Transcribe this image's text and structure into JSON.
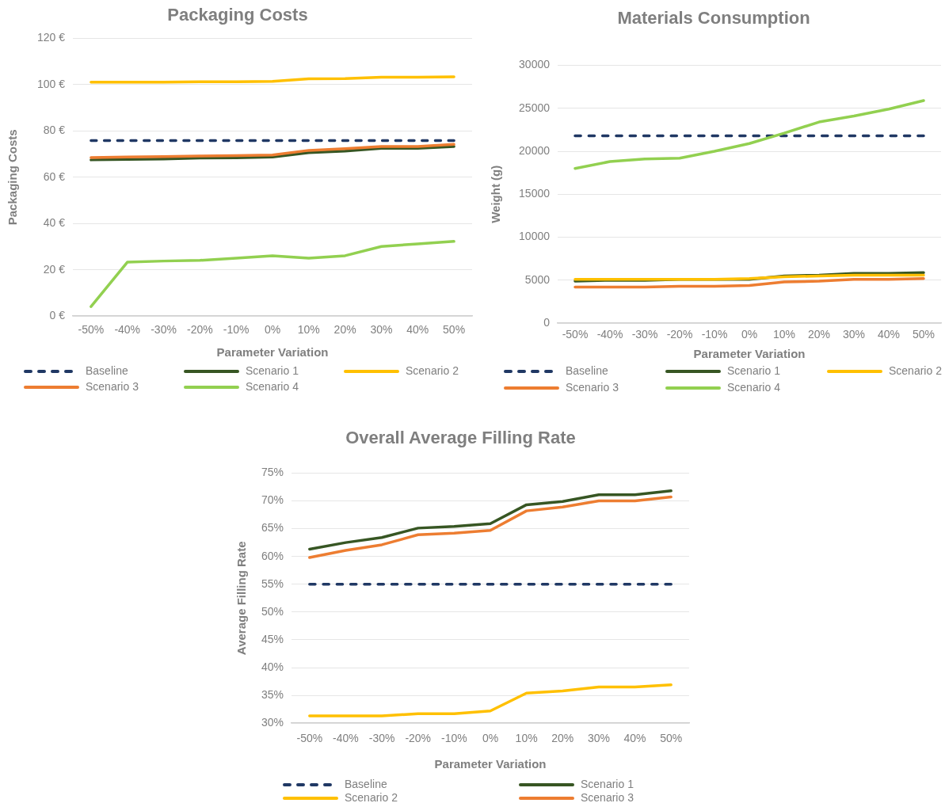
{
  "chart_data": [
    {
      "type": "line",
      "title": "Packaging Costs",
      "xlabel": "Parameter Variation",
      "ylabel": "Packaging Costs",
      "categories": [
        "-50%",
        "-40%",
        "-30%",
        "-20%",
        "-10%",
        "0%",
        "10%",
        "20%",
        "30%",
        "40%",
        "50%"
      ],
      "series": [
        {
          "name": "Baseline",
          "color": "#203864",
          "line_style": "dashed",
          "values": [
            75.8,
            75.8,
            75.8,
            75.8,
            75.8,
            75.8,
            75.8,
            75.8,
            75.8,
            75.8,
            75.8
          ]
        },
        {
          "name": "Scenario 1",
          "color": "#375623",
          "values": [
            67.5,
            67.7,
            67.9,
            68.3,
            68.4,
            68.7,
            70.6,
            71.3,
            72.5,
            72.5,
            73.3
          ]
        },
        {
          "name": "Scenario 2",
          "color": "#ffc000",
          "values": [
            101.1,
            101.1,
            101.1,
            101.2,
            101.2,
            101.4,
            102.5,
            102.6,
            103.2,
            103.2,
            103.4
          ]
        },
        {
          "name": "Scenario 3",
          "color": "#ed7d31",
          "values": [
            68.5,
            68.7,
            68.9,
            69.2,
            69.3,
            69.6,
            71.6,
            72.3,
            73.3,
            73.3,
            74.2
          ]
        },
        {
          "name": "Scenario 4",
          "color": "#92d050",
          "values": [
            4.1,
            23.3,
            23.8,
            24.1,
            25.0,
            26.1,
            25.0,
            26.1,
            30.1,
            31.2,
            32.3
          ]
        }
      ],
      "ylim": [
        0,
        120
      ],
      "yticks": [
        {
          "value": 0,
          "label": "0 €"
        },
        {
          "value": 20,
          "label": "20 €"
        },
        {
          "value": 40,
          "label": "40 €"
        },
        {
          "value": 60,
          "label": "60 €"
        },
        {
          "value": 80,
          "label": "80 €"
        },
        {
          "value": 100,
          "label": "100 €"
        },
        {
          "value": 120,
          "label": "120 €"
        }
      ],
      "grid": "y",
      "legend": "bottom"
    },
    {
      "type": "line",
      "title": "Materials Consumption",
      "xlabel": "Parameter Variation",
      "ylabel": "Weight (g)",
      "categories": [
        "-50%",
        "-40%",
        "-30%",
        "-20%",
        "-10%",
        "0%",
        "10%",
        "20%",
        "30%",
        "40%",
        "50%"
      ],
      "series": [
        {
          "name": "Baseline",
          "color": "#203864",
          "line_style": "dashed",
          "values": [
            21800,
            21800,
            21800,
            21800,
            21800,
            21800,
            21800,
            21800,
            21800,
            21800,
            21800
          ]
        },
        {
          "name": "Scenario 1",
          "color": "#375623",
          "values": [
            4900,
            5000,
            5000,
            5100,
            5100,
            5100,
            5500,
            5600,
            5800,
            5800,
            5900
          ]
        },
        {
          "name": "Scenario 2",
          "color": "#ffc000",
          "values": [
            5100,
            5100,
            5100,
            5100,
            5100,
            5200,
            5400,
            5500,
            5600,
            5600,
            5600
          ]
        },
        {
          "name": "Scenario 3",
          "color": "#ed7d31",
          "values": [
            4200,
            4200,
            4200,
            4300,
            4300,
            4400,
            4800,
            4900,
            5100,
            5100,
            5200
          ]
        },
        {
          "name": "Scenario 4",
          "color": "#92d050",
          "values": [
            18000,
            18800,
            19100,
            19200,
            20000,
            20900,
            22100,
            23400,
            24100,
            24900,
            25900
          ]
        }
      ],
      "ylim": [
        0,
        30000
      ],
      "yticks": [
        0,
        5000,
        10000,
        15000,
        20000,
        25000,
        30000
      ],
      "grid": "y",
      "legend": "bottom"
    },
    {
      "type": "line",
      "title": "Overall Average Filling Rate",
      "xlabel": "Parameter Variation",
      "ylabel": "Average Filling Rate",
      "categories": [
        "-50%",
        "-40%",
        "-30%",
        "-20%",
        "-10%",
        "0%",
        "10%",
        "20%",
        "30%",
        "40%",
        "50%"
      ],
      "series": [
        {
          "name": "Baseline",
          "color": "#203864",
          "line_style": "dashed",
          "values": [
            55,
            55,
            55,
            55,
            55,
            55,
            55,
            55,
            55,
            55,
            55
          ]
        },
        {
          "name": "Scenario 1",
          "color": "#375623",
          "values": [
            61.3,
            62.5,
            63.4,
            65.1,
            65.4,
            65.9,
            69.3,
            69.9,
            71.1,
            71.1,
            71.8
          ]
        },
        {
          "name": "Scenario 2",
          "color": "#ffc000",
          "values": [
            31.3,
            31.3,
            31.3,
            31.7,
            31.7,
            32.2,
            35.4,
            35.8,
            36.5,
            36.5,
            36.9
          ]
        },
        {
          "name": "Scenario 3",
          "color": "#ed7d31",
          "values": [
            59.8,
            61.1,
            62.1,
            63.9,
            64.2,
            64.7,
            68.2,
            68.9,
            70.0,
            70.0,
            70.7
          ]
        }
      ],
      "ylim": [
        30,
        75
      ],
      "yticks": [
        {
          "value": 30,
          "label": "30%"
        },
        {
          "value": 35,
          "label": "35%"
        },
        {
          "value": 40,
          "label": "40%"
        },
        {
          "value": 45,
          "label": "45%"
        },
        {
          "value": 50,
          "label": "50%"
        },
        {
          "value": 55,
          "label": "55%"
        },
        {
          "value": 60,
          "label": "60%"
        },
        {
          "value": 65,
          "label": "65%"
        },
        {
          "value": 70,
          "label": "70%"
        },
        {
          "value": 75,
          "label": "75%"
        }
      ],
      "grid": "y",
      "legend": "bottom"
    }
  ]
}
